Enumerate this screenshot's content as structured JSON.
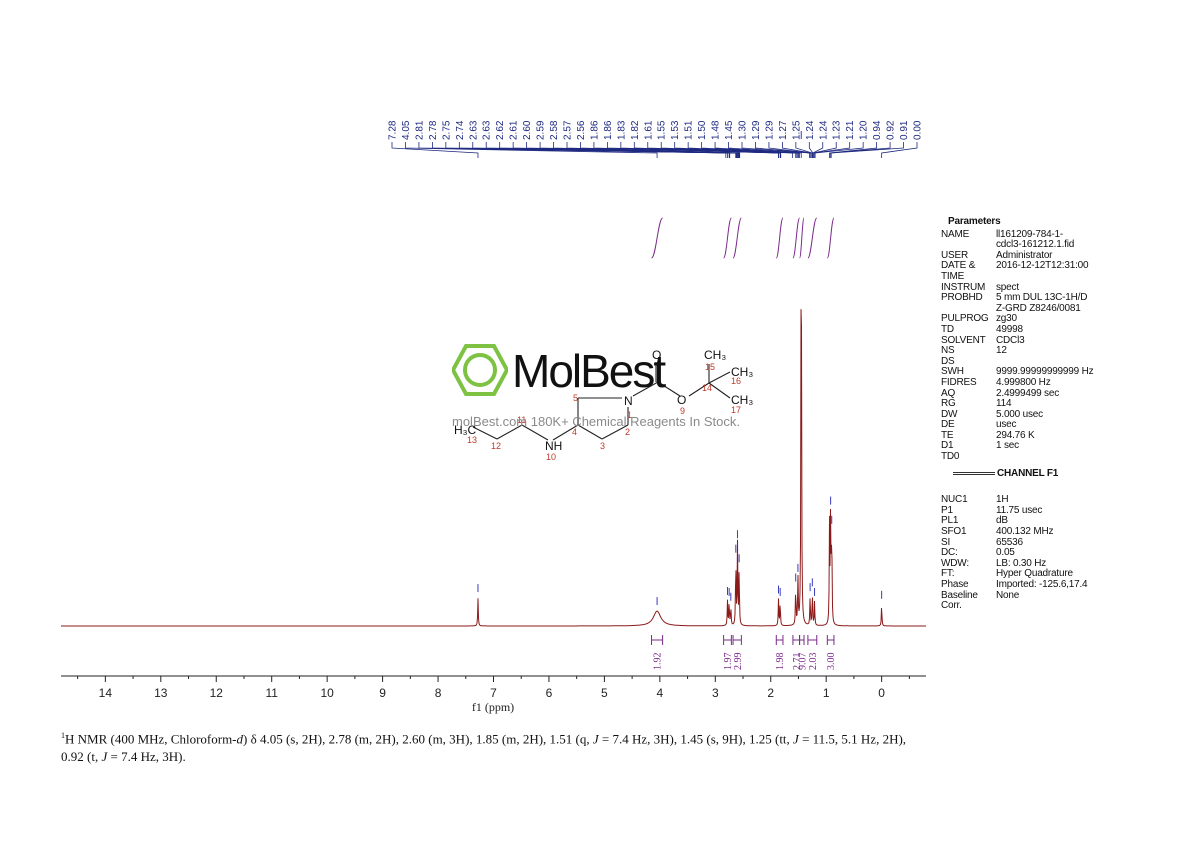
{
  "chart_data": {
    "type": "line",
    "xlabel": "f1 (ppm)",
    "xlim": [
      14.8,
      -0.8
    ],
    "x_ticks": [
      "14",
      "13",
      "12",
      "11",
      "10",
      "9",
      "8",
      "7",
      "6",
      "5",
      "4",
      "3",
      "2",
      "1",
      "0"
    ],
    "axis_reversed": true,
    "spectrum_color": "#8b1a1a",
    "peak_label_color": "#1f2a80",
    "integral_color": "#7a2a8a",
    "peaks": [
      {
        "ppm": 7.28,
        "height": 0.058
      },
      {
        "ppm": 4.05,
        "height": 0.031,
        "width": 0.08
      },
      {
        "ppm": 2.78,
        "height": 0.052
      },
      {
        "ppm": 2.75,
        "height": 0.05
      },
      {
        "ppm": 2.72,
        "height": 0.04
      },
      {
        "ppm": 2.63,
        "height": 0.14
      },
      {
        "ppm": 2.6,
        "height": 0.17
      },
      {
        "ppm": 2.57,
        "height": 0.12
      },
      {
        "ppm": 1.86,
        "height": 0.055
      },
      {
        "ppm": 1.83,
        "height": 0.05
      },
      {
        "ppm": 1.55,
        "height": 0.08
      },
      {
        "ppm": 1.51,
        "height": 0.1
      },
      {
        "ppm": 1.45,
        "height": 1.0
      },
      {
        "ppm": 1.29,
        "height": 0.06
      },
      {
        "ppm": 1.25,
        "height": 0.07
      },
      {
        "ppm": 1.21,
        "height": 0.05
      },
      {
        "ppm": 0.94,
        "height": 0.2
      },
      {
        "ppm": 0.92,
        "height": 0.24
      },
      {
        "ppm": 0.9,
        "height": 0.2
      },
      {
        "ppm": 0.0,
        "height": 0.044
      }
    ],
    "peak_labels": [
      "7.28",
      "4.05",
      "2.81",
      "2.78",
      "2.75",
      "2.74",
      "2.63",
      "2.63",
      "2.62",
      "2.61",
      "2.60",
      "2.59",
      "2.58",
      "2.57",
      "2.56",
      "1.86",
      "1.86",
      "1.83",
      "1.82",
      "1.61",
      "1.55",
      "1.53",
      "1.51",
      "1.50",
      "1.48",
      "1.45",
      "1.30",
      "1.29",
      "1.29",
      "1.27",
      "1.25",
      "1.24",
      "1.24",
      "1.23",
      "1.21",
      "1.20",
      "0.94",
      "0.92",
      "0.91",
      "0.00"
    ],
    "peak_label_targets": [
      7.28,
      4.05,
      2.81,
      2.78,
      2.75,
      2.74,
      2.63,
      2.63,
      2.62,
      2.61,
      2.6,
      2.59,
      2.58,
      2.57,
      2.56,
      1.86,
      1.86,
      1.83,
      1.82,
      1.61,
      1.55,
      1.53,
      1.51,
      1.5,
      1.48,
      1.45,
      1.3,
      1.29,
      1.29,
      1.27,
      1.25,
      1.24,
      1.24,
      1.23,
      1.21,
      1.2,
      0.94,
      0.92,
      0.91,
      0.0
    ],
    "integrals": [
      {
        "label": "1.92",
        "ppm": 4.05,
        "from": 4.15,
        "to": 3.95
      },
      {
        "label": "1.97",
        "ppm": 2.78,
        "from": 2.85,
        "to": 2.71
      },
      {
        "label": "2.99",
        "ppm": 2.6,
        "from": 2.68,
        "to": 2.53
      },
      {
        "label": "1.98",
        "ppm": 1.84,
        "from": 1.9,
        "to": 1.78
      },
      {
        "label": "2.71",
        "ppm": 1.54,
        "from": 1.6,
        "to": 1.48
      },
      {
        "label": "9.07",
        "ppm": 1.44,
        "from": 1.48,
        "to": 1.4
      },
      {
        "label": "2.03",
        "ppm": 1.25,
        "from": 1.33,
        "to": 1.17
      },
      {
        "label": "3.00",
        "ppm": 0.92,
        "from": 0.98,
        "to": 0.86
      }
    ]
  },
  "parameters": {
    "title": "Parameters",
    "rows": [
      {
        "k": "NAME",
        "v": "ll161209-784-1-"
      },
      {
        "k": "",
        "v": "cdcl3-161212.1.fid"
      },
      {
        "k": "USER",
        "v": "Administrator"
      },
      {
        "k": "DATE &",
        "v": "2016-12-12T12:31:00"
      },
      {
        "k": "TIME",
        "v": ""
      },
      {
        "k": "INSTRUM",
        "v": "spect"
      },
      {
        "k": "PROBHD",
        "v": "5 mm DUL 13C-1H/D"
      },
      {
        "k": "",
        "v": "Z-GRD Z8246/0081"
      },
      {
        "k": "PULPROG",
        "v": "zg30"
      },
      {
        "k": "TD",
        "v": "49998"
      },
      {
        "k": "SOLVENT",
        "v": "CDCl3"
      },
      {
        "k": "NS",
        "v": "12"
      },
      {
        "k": "DS",
        "v": ""
      },
      {
        "k": "SWH",
        "v": "9999.99999999999 Hz"
      },
      {
        "k": "FIDRES",
        "v": "4.999800 Hz"
      },
      {
        "k": "AQ",
        "v": "2.4999499 sec"
      },
      {
        "k": "RG",
        "v": "114"
      },
      {
        "k": "DW",
        "v": "5.000 usec"
      },
      {
        "k": "DE",
        "v": "usec"
      },
      {
        "k": "TE",
        "v": "294.76 K"
      },
      {
        "k": "D1",
        "v": "1 sec"
      },
      {
        "k": "TD0",
        "v": ""
      }
    ],
    "channel_title": "CHANNEL F1",
    "channel_rows": [
      {
        "k": "NUC1",
        "v": "1H"
      },
      {
        "k": "P1",
        "v": "11.75 usec"
      },
      {
        "k": "PL1",
        "v": "dB"
      },
      {
        "k": "SFO1",
        "v": "400.132 MHz"
      },
      {
        "k": "SI",
        "v": "65536"
      },
      {
        "k": "DC:",
        "v": "0.05"
      },
      {
        "k": "WDW:",
        "v": "LB: 0.30 Hz"
      },
      {
        "k": "FT:",
        "v": "Hyper Quadrature"
      },
      {
        "k": "Phase",
        "v": "Imported: -125.6,17.4"
      },
      {
        "k": "Baseline",
        "v": "None"
      },
      {
        "k": "Corr.",
        "v": ""
      }
    ]
  },
  "structure": {
    "atom_O": "O",
    "atom_N": "N",
    "atom_NH": "NH",
    "atom_H3C": "H₃C",
    "atom_CH3_top": "CH₃",
    "atom_CH3_right": "CH₃",
    "atom_CH3_bottom": "CH₃",
    "numbers": [
      "1",
      "2",
      "3",
      "4",
      "5",
      "9",
      "10",
      "11",
      "12",
      "13",
      "14",
      "15",
      "16",
      "17"
    ]
  },
  "watermark": {
    "brand": "MolBest",
    "tagline": "molBest.com 180K+ Chemical Reagents In Stock.",
    "brand_color": "#7dc242"
  },
  "caption": {
    "sup": "1",
    "text_a": "H NMR (400 MHz, Chloroform-",
    "text_d": "d",
    "text_b": ") δ 4.05 (s, 2H), 2.78 (m, 2H), 2.60 (m, 3H), 1.85 (m, 2H), 1.51 (q, ",
    "J1": "J",
    "text_c": " = 7.4 Hz, 3H), 1.45 (s, 9H), 1.25 (tt, ",
    "J2": "J",
    "text_e": " = 11.5, 5.1 Hz, 2H), 0.92 (t, ",
    "J3": "J",
    "text_f": " = 7.4 Hz, 3H)."
  }
}
